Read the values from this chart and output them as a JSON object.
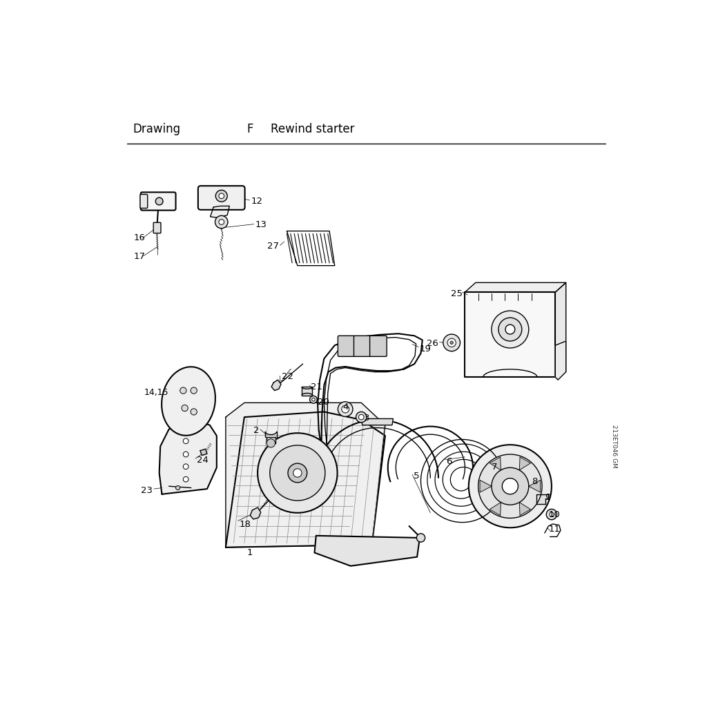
{
  "title_left": "Drawing",
  "title_mid": "F",
  "title_right": "Rewind starter",
  "watermark": "213ET046 GM",
  "bg_color": "#ffffff",
  "line_color": "#000000",
  "text_color": "#000000",
  "title_fontsize": 12,
  "label_fontsize": 9.5,
  "figsize": [
    10.24,
    10.24
  ],
  "dpi": 100
}
